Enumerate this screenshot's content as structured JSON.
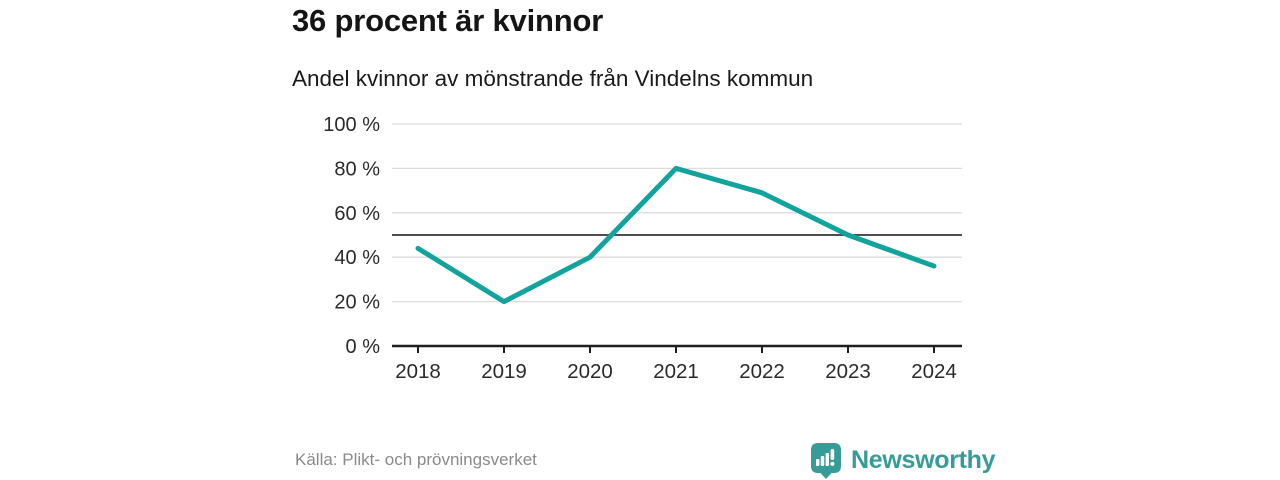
{
  "header": {
    "title": "36 procent är kvinnor",
    "subtitle": "Andel kvinnor av mönstrande från Vindelns kommun"
  },
  "chart_data": {
    "type": "line",
    "title": "36 procent är kvinnor",
    "subtitle": "Andel kvinnor av mönstrande från Vindelns kommun",
    "x": [
      "2018",
      "2019",
      "2020",
      "2021",
      "2022",
      "2023",
      "2024"
    ],
    "series": [
      {
        "name": "Andel kvinnor av mönstrande",
        "values": [
          44,
          20,
          40,
          80,
          69,
          50,
          36
        ]
      }
    ],
    "unit": "%",
    "ylim": [
      0,
      100
    ],
    "y_ticks": [
      0,
      20,
      40,
      60,
      80,
      100
    ],
    "y_tick_suffix": " %",
    "reference_line": 50,
    "grid": "horizontal",
    "legend": "none",
    "colors": {
      "line": "#12a39c",
      "grid": "#dcdcdc",
      "reference_line": "#4f4f4f",
      "axis": "#1f1f1f",
      "tick_text": "#2b2b2b"
    }
  },
  "footer": {
    "source": "Källa: Plikt- och prövningsverket",
    "brand": "Newsworthy",
    "brand_color": "#379b97"
  }
}
